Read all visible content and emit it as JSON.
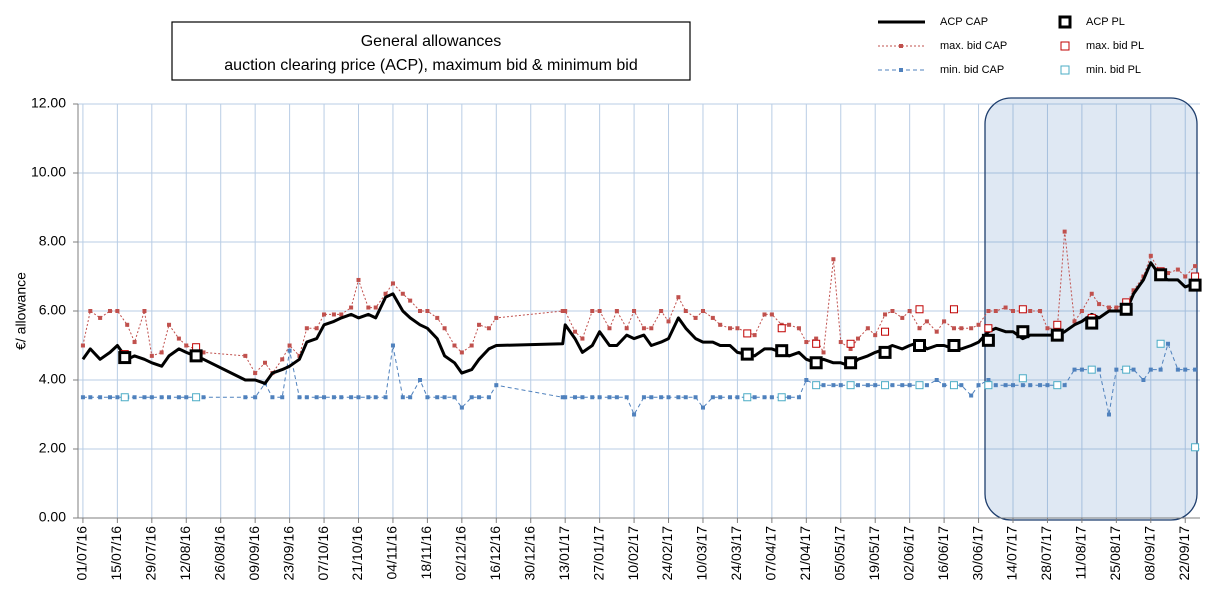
{
  "chart_data": {
    "type": "line",
    "title": [
      "General allowances",
      "auction clearing price (ACP),  maximum bid & minimum bid"
    ],
    "y_label": "€/ allowance",
    "ylim": [
      0,
      12
    ],
    "yticks": [
      {
        "value": 0,
        "label": "0.00"
      },
      {
        "value": 2,
        "label": "2.00"
      },
      {
        "value": 4,
        "label": "4.00"
      },
      {
        "value": 6,
        "label": "6.00"
      },
      {
        "value": 8,
        "label": "8.00"
      },
      {
        "value": 10,
        "label": "10.00"
      },
      {
        "value": 12,
        "label": "12.00"
      }
    ],
    "xlim": [
      "29/06/16",
      "28/09/17"
    ],
    "xticks": [
      "01/07/16",
      "15/07/16",
      "29/07/16",
      "12/08/16",
      "26/08/16",
      "09/09/16",
      "23/09/16",
      "07/10/16",
      "21/10/16",
      "04/11/16",
      "18/11/16",
      "02/12/16",
      "16/12/16",
      "30/12/16",
      "13/01/17",
      "27/01/17",
      "10/02/17",
      "24/02/17",
      "10/03/17",
      "24/03/17",
      "07/04/17",
      "21/04/17",
      "05/05/17",
      "19/05/17",
      "02/06/17",
      "16/06/17",
      "30/06/17",
      "14/07/17",
      "28/07/17",
      "11/08/17",
      "25/08/17",
      "08/09/17",
      "22/09/17"
    ],
    "grid": true,
    "series": [
      {
        "name": "ACP CAP",
        "color": "#000000",
        "style": "line",
        "x": [
          "01/07/16",
          "04/07/16",
          "08/07/16",
          "12/07/16",
          "15/07/16",
          "19/07/16",
          "22/07/16",
          "26/07/16",
          "29/07/16",
          "02/08/16",
          "05/08/16",
          "09/08/16",
          "12/08/16",
          "19/08/16",
          "05/09/16",
          "09/09/16",
          "13/09/16",
          "16/09/16",
          "20/09/16",
          "23/09/16",
          "27/09/16",
          "30/09/16",
          "04/10/16",
          "07/10/16",
          "11/10/16",
          "14/10/16",
          "18/10/16",
          "21/10/16",
          "25/10/16",
          "28/10/16",
          "01/11/16",
          "04/11/16",
          "08/11/16",
          "11/11/16",
          "15/11/16",
          "18/11/16",
          "22/11/16",
          "25/11/16",
          "29/11/16",
          "02/12/16",
          "06/12/16",
          "09/12/16",
          "13/12/16",
          "16/12/16",
          "12/01/17",
          "13/01/17",
          "17/01/17",
          "20/01/17",
          "24/01/17",
          "27/01/17",
          "31/01/17",
          "03/02/17",
          "07/02/17",
          "10/02/17",
          "14/02/17",
          "17/02/17",
          "21/02/17",
          "24/02/17",
          "28/02/17",
          "03/03/17",
          "07/03/17",
          "10/03/17",
          "14/03/17",
          "17/03/17",
          "21/03/17",
          "24/03/17",
          "31/03/17",
          "04/04/17",
          "07/04/17",
          "11/04/17",
          "14/04/17",
          "18/04/17",
          "21/04/17",
          "25/04/17",
          "28/04/17",
          "02/05/17",
          "05/05/17",
          "09/05/17",
          "12/05/17",
          "16/05/17",
          "19/05/17",
          "23/05/17",
          "26/05/17",
          "30/05/17",
          "02/06/17",
          "06/06/17",
          "09/06/17",
          "13/06/17",
          "16/06/17",
          "20/06/17",
          "23/06/17",
          "27/06/17",
          "30/06/17",
          "04/07/17",
          "07/07/17",
          "11/07/17",
          "14/07/17",
          "18/07/17",
          "21/07/17",
          "25/07/17",
          "28/07/17",
          "01/08/17",
          "04/08/17",
          "08/08/17",
          "11/08/17",
          "15/08/17",
          "18/08/17",
          "22/08/17",
          "25/08/17",
          "29/08/17",
          "01/09/17",
          "05/09/17",
          "08/09/17",
          "12/09/17",
          "15/09/17",
          "19/09/17",
          "22/09/17",
          "26/09/17"
        ],
        "values": [
          4.6,
          4.9,
          4.6,
          4.8,
          5.0,
          4.6,
          4.7,
          4.6,
          4.5,
          4.4,
          4.7,
          4.9,
          4.8,
          4.6,
          4.0,
          4.0,
          3.9,
          4.2,
          4.3,
          4.4,
          4.6,
          5.1,
          5.2,
          5.6,
          5.7,
          5.8,
          5.9,
          5.8,
          5.9,
          5.8,
          6.4,
          6.5,
          6.0,
          5.8,
          5.6,
          5.5,
          5.2,
          4.7,
          4.5,
          4.2,
          4.3,
          4.6,
          4.9,
          5.0,
          5.05,
          5.6,
          5.2,
          4.8,
          5.0,
          5.4,
          5.0,
          5.0,
          5.3,
          5.2,
          5.3,
          5.0,
          5.1,
          5.2,
          5.8,
          5.5,
          5.2,
          5.1,
          5.1,
          5.0,
          5.0,
          4.8,
          4.7,
          4.9,
          4.9,
          4.8,
          4.7,
          4.8,
          4.6,
          4.5,
          4.6,
          4.5,
          4.5,
          4.4,
          4.6,
          4.7,
          4.8,
          4.9,
          5.0,
          4.9,
          5.0,
          5.1,
          4.9,
          5.0,
          5.0,
          4.9,
          4.9,
          5.0,
          5.1,
          5.4,
          5.5,
          5.4,
          5.4,
          5.2,
          5.3,
          5.3,
          5.3,
          5.3,
          5.4,
          5.6,
          5.7,
          5.9,
          5.8,
          6.0,
          6.0,
          6.0,
          6.5,
          6.9,
          7.4,
          7.0,
          6.9,
          6.9,
          6.7,
          6.8
        ]
      },
      {
        "name": "max. bid CAP",
        "color": "#c0504d",
        "style": "dotted",
        "x": [
          "01/07/16",
          "04/07/16",
          "08/07/16",
          "12/07/16",
          "15/07/16",
          "19/07/16",
          "22/07/16",
          "26/07/16",
          "29/07/16",
          "02/08/16",
          "05/08/16",
          "09/08/16",
          "12/08/16",
          "19/08/16",
          "05/09/16",
          "09/09/16",
          "13/09/16",
          "16/09/16",
          "20/09/16",
          "23/09/16",
          "27/09/16",
          "30/09/16",
          "04/10/16",
          "07/10/16",
          "11/10/16",
          "14/10/16",
          "18/10/16",
          "21/10/16",
          "25/10/16",
          "28/10/16",
          "01/11/16",
          "04/11/16",
          "08/11/16",
          "11/11/16",
          "15/11/16",
          "18/11/16",
          "22/11/16",
          "25/11/16",
          "29/11/16",
          "02/12/16",
          "06/12/16",
          "09/12/16",
          "13/12/16",
          "16/12/16",
          "12/01/17",
          "13/01/17",
          "17/01/17",
          "20/01/17",
          "24/01/17",
          "27/01/17",
          "31/01/17",
          "03/02/17",
          "07/02/17",
          "10/02/17",
          "14/02/17",
          "17/02/17",
          "21/02/17",
          "24/02/17",
          "28/02/17",
          "03/03/17",
          "07/03/17",
          "10/03/17",
          "14/03/17",
          "17/03/17",
          "21/03/17",
          "24/03/17",
          "31/03/17",
          "04/04/17",
          "07/04/17",
          "11/04/17",
          "14/04/17",
          "18/04/17",
          "21/04/17",
          "25/04/17",
          "28/04/17",
          "02/05/17",
          "05/05/17",
          "09/05/17",
          "12/05/17",
          "16/05/17",
          "19/05/17",
          "23/05/17",
          "26/05/17",
          "30/05/17",
          "02/06/17",
          "06/06/17",
          "09/06/17",
          "13/06/17",
          "16/06/17",
          "20/06/17",
          "23/06/17",
          "27/06/17",
          "30/06/17",
          "04/07/17",
          "07/07/17",
          "11/07/17",
          "14/07/17",
          "18/07/17",
          "21/07/17",
          "25/07/17",
          "28/07/17",
          "01/08/17",
          "04/08/17",
          "08/08/17",
          "11/08/17",
          "15/08/17",
          "18/08/17",
          "22/08/17",
          "25/08/17",
          "29/08/17",
          "01/09/17",
          "05/09/17",
          "08/09/17",
          "12/09/17",
          "15/09/17",
          "19/09/17",
          "22/09/17",
          "26/09/17"
        ],
        "values": [
          5.0,
          6.0,
          5.8,
          6.0,
          6.0,
          5.6,
          5.1,
          6.0,
          4.7,
          4.8,
          5.6,
          5.2,
          5.0,
          4.8,
          4.7,
          4.2,
          4.5,
          4.2,
          4.6,
          5.0,
          4.7,
          5.5,
          5.5,
          5.9,
          5.9,
          5.9,
          6.1,
          6.9,
          6.1,
          6.1,
          6.5,
          6.8,
          6.5,
          6.3,
          6.0,
          6.0,
          5.8,
          5.5,
          5.0,
          4.8,
          5.0,
          5.6,
          5.5,
          5.8,
          6.0,
          6.0,
          5.4,
          5.2,
          6.0,
          6.0,
          5.5,
          6.0,
          5.5,
          6.0,
          5.5,
          5.5,
          6.0,
          5.7,
          6.4,
          6.0,
          5.8,
          6.0,
          5.8,
          5.6,
          5.5,
          5.5,
          5.3,
          5.9,
          5.9,
          5.6,
          5.6,
          5.5,
          5.1,
          5.2,
          4.8,
          7.5,
          5.1,
          4.9,
          5.2,
          5.5,
          5.3,
          5.9,
          6.0,
          5.8,
          6.0,
          5.5,
          5.7,
          5.4,
          5.7,
          5.5,
          5.5,
          5.5,
          5.6,
          6.0,
          6.0,
          6.1,
          6.0,
          6.0,
          6.0,
          6.0,
          5.5,
          5.5,
          8.3,
          5.7,
          6.0,
          6.5,
          6.2,
          6.1,
          6.1,
          6.2,
          6.6,
          7.0,
          7.6,
          7.1,
          7.1,
          7.2,
          7.0,
          7.3
        ]
      },
      {
        "name": "min. bid CAP",
        "color": "#4f81bd",
        "style": "dashed",
        "x": [
          "01/07/16",
          "04/07/16",
          "08/07/16",
          "12/07/16",
          "15/07/16",
          "19/07/16",
          "22/07/16",
          "26/07/16",
          "29/07/16",
          "02/08/16",
          "05/08/16",
          "09/08/16",
          "12/08/16",
          "19/08/16",
          "05/09/16",
          "09/09/16",
          "13/09/16",
          "16/09/16",
          "20/09/16",
          "23/09/16",
          "27/09/16",
          "30/09/16",
          "04/10/16",
          "07/10/16",
          "11/10/16",
          "14/10/16",
          "18/10/16",
          "21/10/16",
          "25/10/16",
          "28/10/16",
          "01/11/16",
          "04/11/16",
          "08/11/16",
          "11/11/16",
          "15/11/16",
          "18/11/16",
          "22/11/16",
          "25/11/16",
          "29/11/16",
          "02/12/16",
          "06/12/16",
          "09/12/16",
          "13/12/16",
          "16/12/16",
          "12/01/17",
          "13/01/17",
          "17/01/17",
          "20/01/17",
          "24/01/17",
          "27/01/17",
          "31/01/17",
          "03/02/17",
          "07/02/17",
          "10/02/17",
          "14/02/17",
          "17/02/17",
          "21/02/17",
          "24/02/17",
          "28/02/17",
          "03/03/17",
          "07/03/17",
          "10/03/17",
          "14/03/17",
          "17/03/17",
          "21/03/17",
          "24/03/17",
          "31/03/17",
          "04/04/17",
          "07/04/17",
          "11/04/17",
          "14/04/17",
          "18/04/17",
          "21/04/17",
          "25/04/17",
          "28/04/17",
          "02/05/17",
          "05/05/17",
          "09/05/17",
          "12/05/17",
          "16/05/17",
          "19/05/17",
          "23/05/17",
          "26/05/17",
          "30/05/17",
          "02/06/17",
          "06/06/17",
          "09/06/17",
          "13/06/17",
          "16/06/17",
          "20/06/17",
          "23/06/17",
          "27/06/17",
          "30/06/17",
          "04/07/17",
          "07/07/17",
          "11/07/17",
          "14/07/17",
          "18/07/17",
          "21/07/17",
          "25/07/17",
          "28/07/17",
          "01/08/17",
          "04/08/17",
          "08/08/17",
          "11/08/17",
          "15/08/17",
          "18/08/17",
          "22/08/17",
          "25/08/17",
          "29/08/17",
          "01/09/17",
          "05/09/17",
          "08/09/17",
          "12/09/17",
          "15/09/17",
          "19/09/17",
          "22/09/17",
          "26/09/17"
        ],
        "values": [
          3.5,
          3.5,
          3.5,
          3.5,
          3.5,
          3.5,
          3.5,
          3.5,
          3.5,
          3.5,
          3.5,
          3.5,
          3.5,
          3.5,
          3.5,
          3.5,
          3.9,
          3.5,
          3.5,
          4.85,
          3.5,
          3.5,
          3.5,
          3.5,
          3.5,
          3.5,
          3.5,
          3.5,
          3.5,
          3.5,
          3.5,
          5.0,
          3.5,
          3.5,
          4.0,
          3.5,
          3.5,
          3.5,
          3.5,
          3.2,
          3.5,
          3.5,
          3.5,
          3.85,
          3.5,
          3.5,
          3.5,
          3.5,
          3.5,
          3.5,
          3.5,
          3.5,
          3.5,
          3.0,
          3.5,
          3.5,
          3.5,
          3.5,
          3.5,
          3.5,
          3.5,
          3.2,
          3.5,
          3.5,
          3.5,
          3.5,
          3.5,
          3.5,
          3.5,
          3.5,
          3.5,
          3.5,
          4.0,
          3.85,
          3.85,
          3.85,
          3.85,
          3.85,
          3.85,
          3.85,
          3.85,
          3.85,
          3.85,
          3.85,
          3.85,
          3.85,
          3.85,
          4.0,
          3.85,
          3.85,
          3.85,
          3.55,
          3.85,
          4.0,
          3.85,
          3.85,
          3.85,
          3.85,
          3.85,
          3.85,
          3.85,
          3.85,
          3.85,
          4.3,
          4.3,
          4.3,
          4.3,
          3.0,
          4.3,
          4.3,
          4.3,
          4.0,
          4.3,
          4.3,
          5.05,
          4.3,
          4.3,
          4.3
        ]
      },
      {
        "name": "ACP PL",
        "color": "#000000",
        "style": "marker-big",
        "x": [
          "18/07/16",
          "16/08/16",
          "28/03/17",
          "11/04/17",
          "25/04/17",
          "09/05/17",
          "23/05/17",
          "06/06/17",
          "20/06/17",
          "04/07/17",
          "18/07/17",
          "01/08/17",
          "15/08/17",
          "29/08/17",
          "12/09/17",
          "26/09/17"
        ],
        "values": [
          4.65,
          4.7,
          4.75,
          4.85,
          4.5,
          4.5,
          4.8,
          5.0,
          5.0,
          5.15,
          5.4,
          5.3,
          5.65,
          6.05,
          7.05,
          6.75
        ]
      },
      {
        "name": "max. bid PL",
        "color": "#c00000",
        "style": "marker",
        "x": [
          "18/07/16",
          "16/08/16",
          "28/03/17",
          "11/04/17",
          "25/04/17",
          "09/05/17",
          "23/05/17",
          "06/06/17",
          "20/06/17",
          "04/07/17",
          "18/07/17",
          "01/08/17",
          "15/08/17",
          "29/08/17",
          "12/09/17",
          "26/09/17"
        ],
        "values": [
          4.75,
          4.95,
          5.35,
          5.5,
          5.05,
          5.05,
          5.4,
          6.05,
          6.05,
          5.5,
          6.05,
          5.6,
          5.8,
          6.25,
          7.15,
          7.0
        ]
      },
      {
        "name": "min. bid PL",
        "color": "#4bacc6",
        "style": "marker",
        "x": [
          "18/07/16",
          "16/08/16",
          "28/03/17",
          "11/04/17",
          "25/04/17",
          "09/05/17",
          "23/05/17",
          "06/06/17",
          "20/06/17",
          "04/07/17",
          "18/07/17",
          "01/08/17",
          "15/08/17",
          "29/08/17",
          "12/09/17",
          "26/09/17"
        ],
        "values": [
          3.5,
          3.5,
          3.5,
          3.5,
          3.85,
          3.85,
          3.85,
          3.85,
          3.85,
          3.85,
          4.05,
          3.85,
          4.3,
          4.3,
          5.05,
          2.05
        ]
      }
    ]
  }
}
